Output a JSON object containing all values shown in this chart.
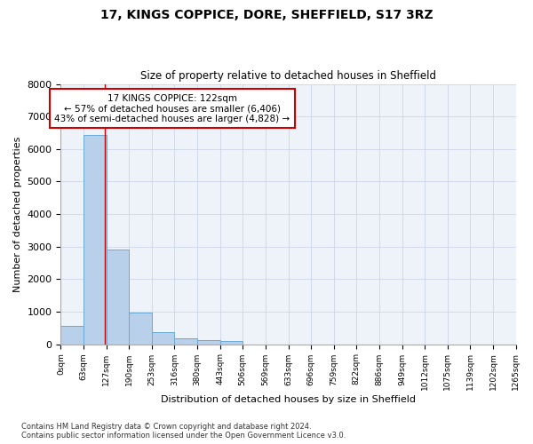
{
  "title_line1": "17, KINGS COPPICE, DORE, SHEFFIELD, S17 3RZ",
  "title_line2": "Size of property relative to detached houses in Sheffield",
  "xlabel": "Distribution of detached houses by size in Sheffield",
  "ylabel": "Number of detached properties",
  "bar_color": "#b8d0ea",
  "bar_edge_color": "#6aaad4",
  "marker_color": "#cc0000",
  "background_color": "#eef2f9",
  "bins": [
    0,
    63,
    127,
    190,
    253,
    316,
    380,
    443,
    506,
    569,
    633,
    696,
    759,
    822,
    886,
    949,
    1012,
    1075,
    1139,
    1202,
    1265
  ],
  "bar_heights": [
    560,
    6420,
    2920,
    980,
    370,
    180,
    125,
    90,
    0,
    0,
    0,
    0,
    0,
    0,
    0,
    0,
    0,
    0,
    0,
    0
  ],
  "property_size": 122,
  "annotation_text": "17 KINGS COPPICE: 122sqm\n← 57% of detached houses are smaller (6,406)\n43% of semi-detached houses are larger (4,828) →",
  "annotation_box_color": "#ffffff",
  "annotation_box_edge_color": "#cc0000",
  "ylim": [
    0,
    8000
  ],
  "yticks": [
    0,
    1000,
    2000,
    3000,
    4000,
    5000,
    6000,
    7000,
    8000
  ],
  "tick_labels": [
    "0sqm",
    "63sqm",
    "127sqm",
    "190sqm",
    "253sqm",
    "316sqm",
    "380sqm",
    "443sqm",
    "506sqm",
    "569sqm",
    "633sqm",
    "696sqm",
    "759sqm",
    "822sqm",
    "886sqm",
    "949sqm",
    "1012sqm",
    "1075sqm",
    "1139sqm",
    "1202sqm",
    "1265sqm"
  ],
  "footer_text": "Contains HM Land Registry data © Crown copyright and database right 2024.\nContains public sector information licensed under the Open Government Licence v3.0.",
  "grid_color": "#ccd5e8"
}
